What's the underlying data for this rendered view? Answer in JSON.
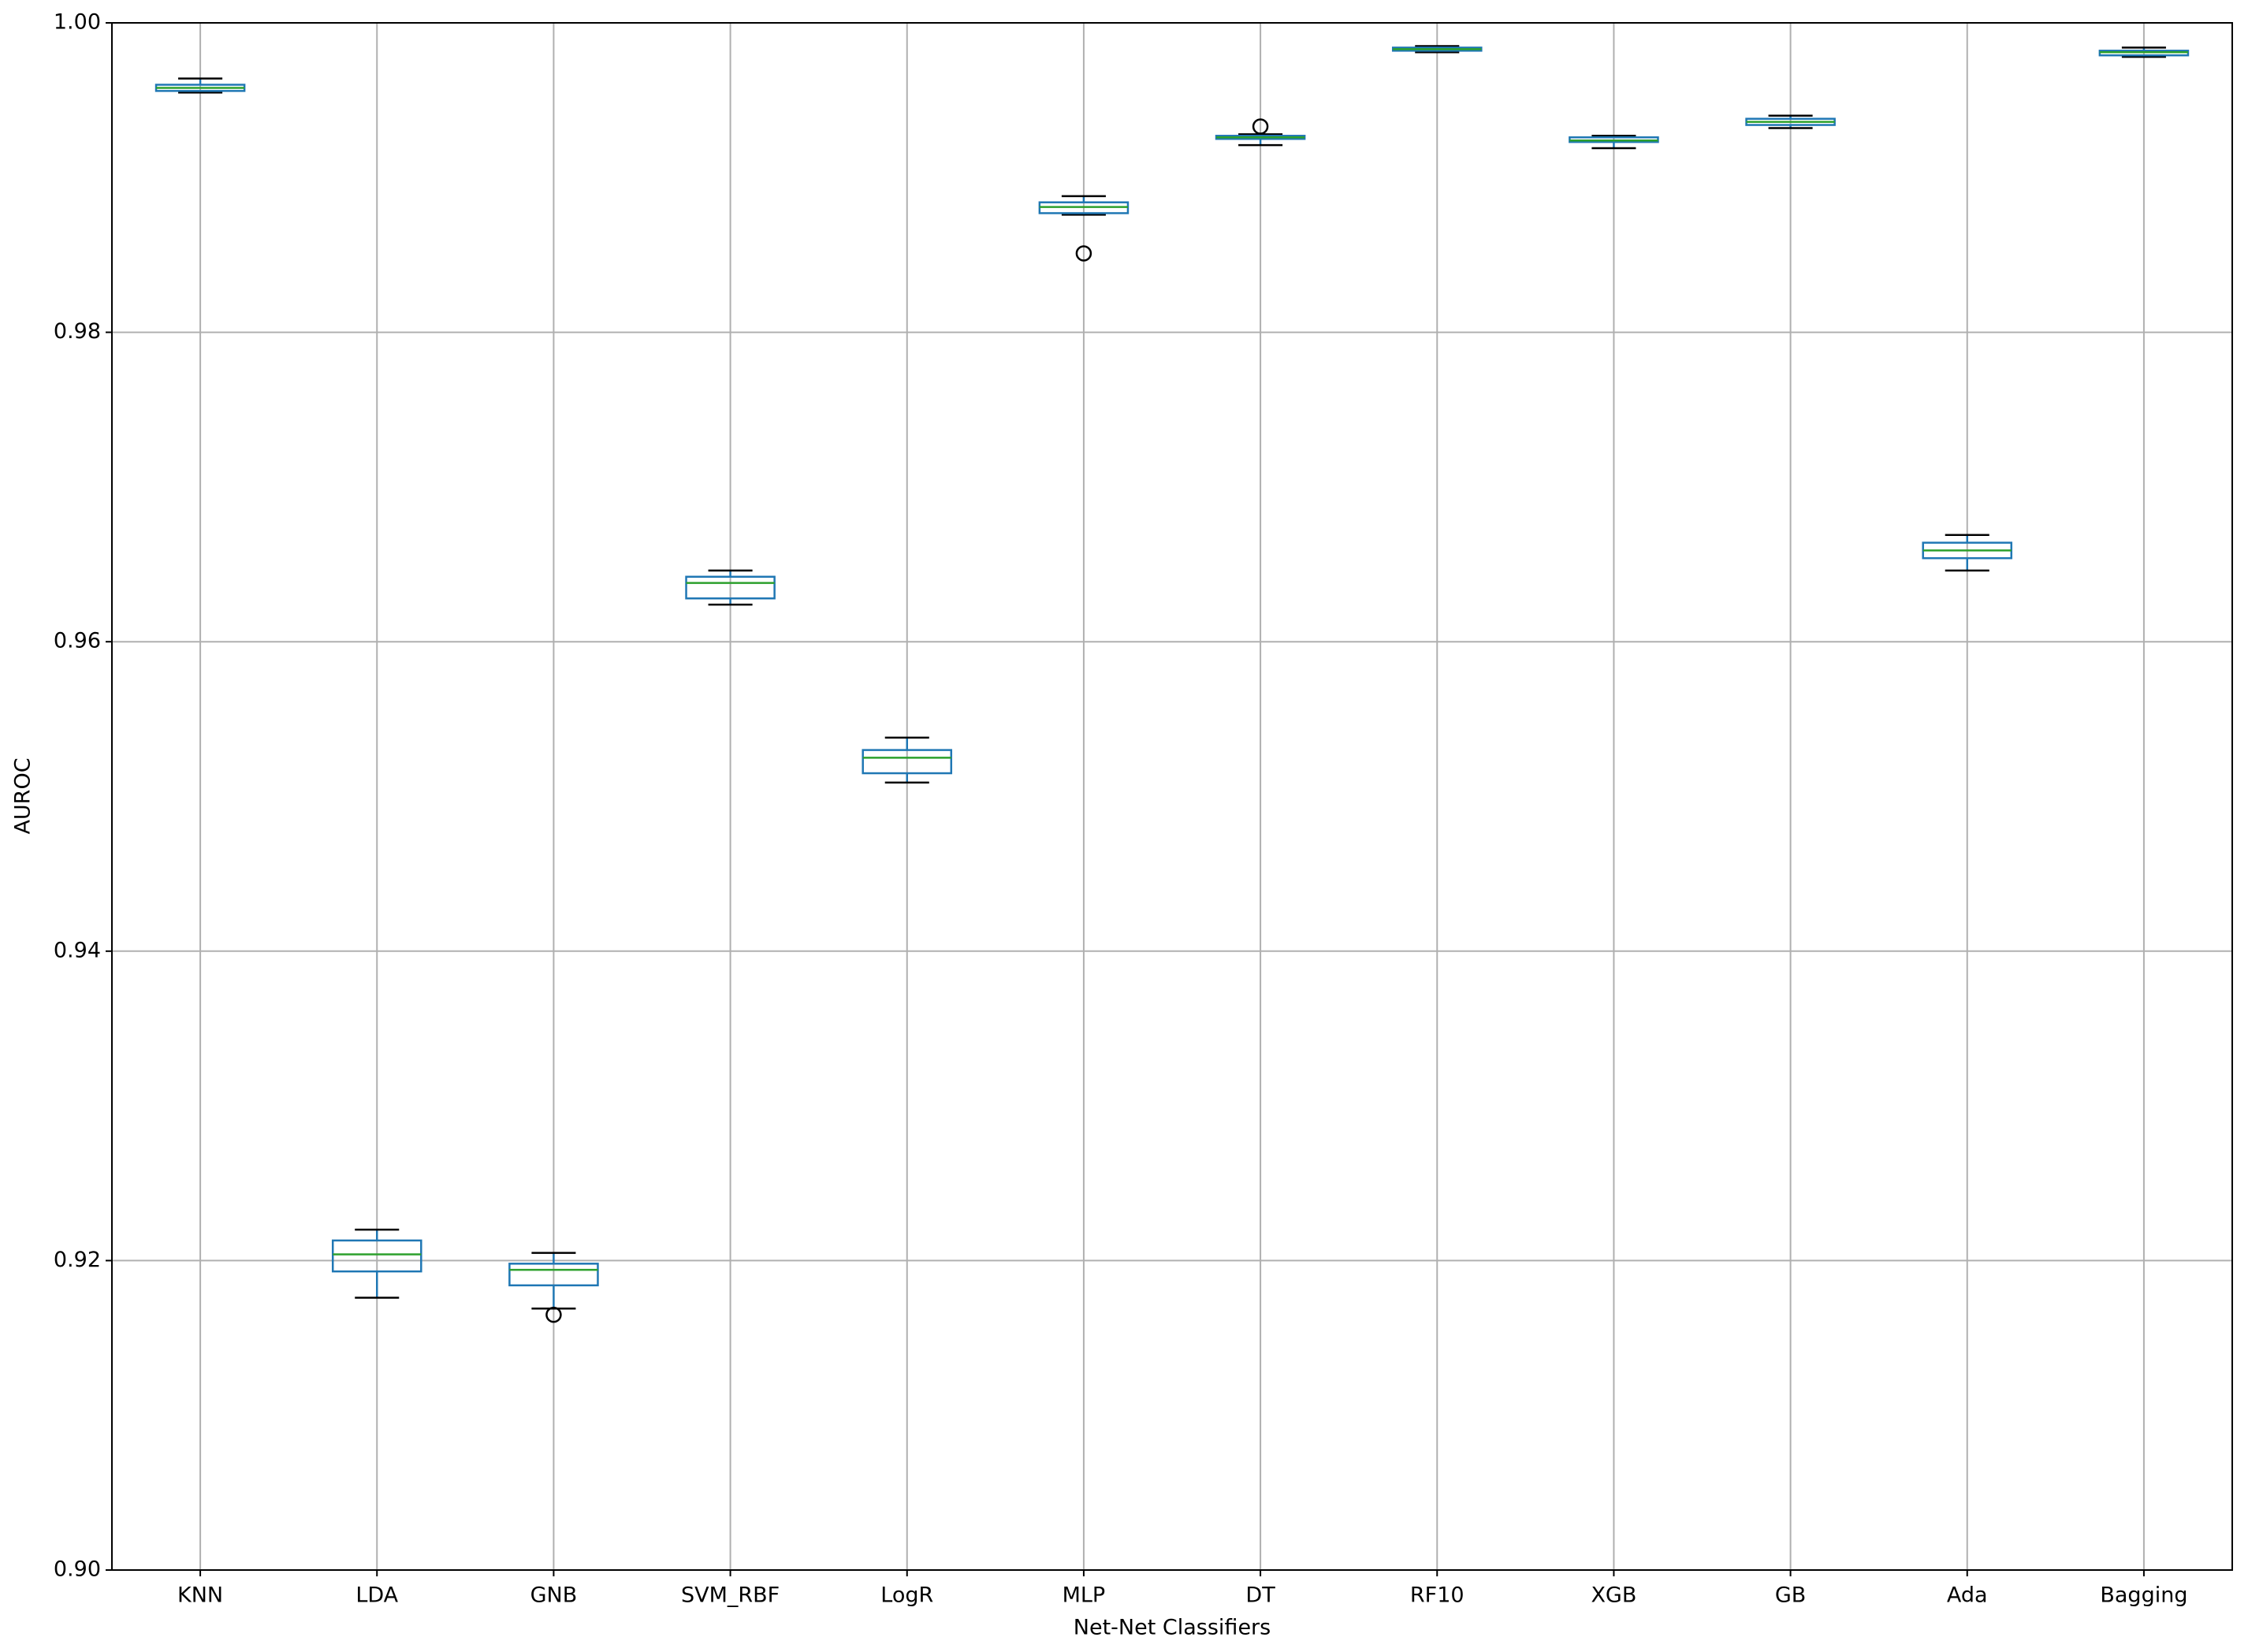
{
  "chart_data": {
    "type": "box",
    "xlabel": "Net-Net Classifiers",
    "ylabel": "AUROC",
    "categories": [
      "KNN",
      "LDA",
      "GNB",
      "SVM_RBF",
      "LogR",
      "MLP",
      "DT",
      "RF10",
      "XGB",
      "GB",
      "Ada",
      "Bagging"
    ],
    "whisker_low": [
      0.9955,
      0.9176,
      0.9169,
      0.9624,
      0.9509,
      0.9876,
      0.9921,
      0.9981,
      0.9919,
      0.9932,
      0.9646,
      0.9978
    ],
    "q1": [
      0.9956,
      0.9193,
      0.9184,
      0.9628,
      0.9515,
      0.9877,
      0.9925,
      0.9982,
      0.9923,
      0.9934,
      0.9654,
      0.9979
    ],
    "median": [
      0.9958,
      0.9204,
      0.9194,
      0.9638,
      0.9525,
      0.9881,
      0.9926,
      0.9983,
      0.9924,
      0.9936,
      0.9659,
      0.9981
    ],
    "q3": [
      0.996,
      0.9213,
      0.9198,
      0.9642,
      0.953,
      0.9884,
      0.9927,
      0.9984,
      0.9926,
      0.9938,
      0.9664,
      0.9982
    ],
    "whisker_high": [
      0.9964,
      0.922,
      0.9205,
      0.9646,
      0.9538,
      0.9888,
      0.9928,
      0.9985,
      0.9927,
      0.994,
      0.9669,
      0.9984
    ],
    "outliers": [
      [],
      [],
      [
        0.9165
      ],
      [],
      [],
      [
        0.9851
      ],
      [
        0.9933
      ],
      [],
      [],
      [],
      [],
      []
    ],
    "box_color": "#1f77b4",
    "median_color": "#2ca02c",
    "whisker_color": "#000000",
    "ylim": [
      0.9,
      1.0
    ],
    "yticks": [
      {
        "value": 0.9,
        "label": "0.90"
      },
      0.92,
      0.94,
      0.96,
      0.98,
      {
        "value": 1.0,
        "label": "1.00"
      }
    ],
    "grid": true
  }
}
